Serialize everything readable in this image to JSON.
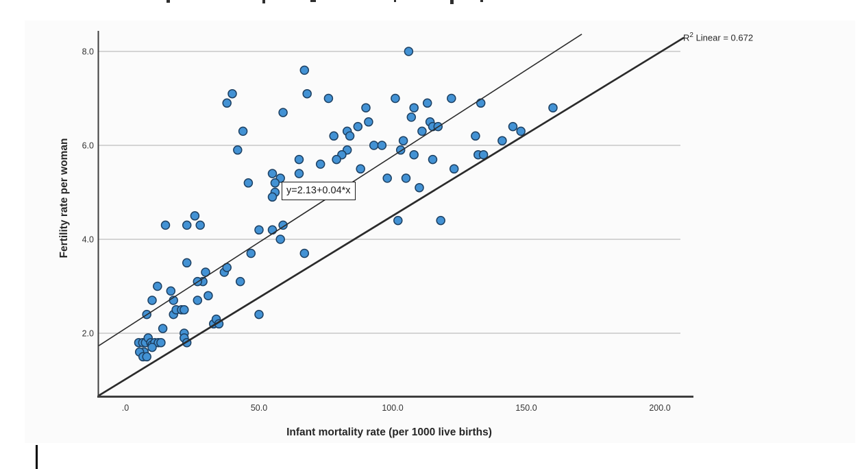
{
  "chart_data": {
    "type": "scatter",
    "title": "",
    "xlabel": "Infant mortality rate (per 1000 live births)",
    "ylabel": "Fertility rate per woman",
    "x_tick_labels": [
      ".0",
      "50.0",
      "100.0",
      "150.0",
      "200.0"
    ],
    "x_tick_values": [
      0,
      50,
      100,
      150,
      200
    ],
    "y_tick_labels": [
      "2.0",
      "4.0",
      "6.0",
      "8.0"
    ],
    "y_tick_values": [
      2,
      4,
      6,
      8
    ],
    "xlim": [
      -10.3,
      207.7
    ],
    "ylim": [
      0.65,
      8.44
    ],
    "grid": "horizontal-only",
    "legend": "none",
    "equation_label": "y=2.13+0.04*x",
    "r2_text": {
      "base": "R",
      "sup": "2",
      "rest": " Linear = 0.672"
    },
    "fit_lines": [
      {
        "name": "regression-fit-line",
        "slope": 0.0367,
        "intercept": 2.1,
        "x_range": [
          -10.26,
          170.8
        ],
        "stroke_width": 1.6
      },
      {
        "name": "reference-fit-line",
        "slope": 0.0348,
        "intercept": 1.02,
        "x_range": [
          -10.26,
          209.0
        ],
        "stroke_width": 2.7
      }
    ],
    "point_style": {
      "fill": "#4392d4",
      "stroke": "#1d4062",
      "radius": 6
    },
    "colors": {
      "gridline": "#bdbdbd",
      "axis": "#3e3e3e",
      "line": "#2b2b2b",
      "text": "#262626"
    },
    "points": [
      [
        67,
        7.6
      ],
      [
        68,
        7.1
      ],
      [
        76,
        7.0
      ],
      [
        40,
        7.1
      ],
      [
        38,
        6.9
      ],
      [
        59,
        6.7
      ],
      [
        90,
        6.8
      ],
      [
        91,
        6.5
      ],
      [
        87,
        6.4
      ],
      [
        83,
        6.3
      ],
      [
        84,
        6.2
      ],
      [
        78,
        6.2
      ],
      [
        44,
        6.3
      ],
      [
        42,
        5.9
      ],
      [
        93,
        6.0
      ],
      [
        96,
        6.0
      ],
      [
        83,
        5.9
      ],
      [
        81,
        5.8
      ],
      [
        79,
        5.7
      ],
      [
        65,
        5.7
      ],
      [
        73,
        5.6
      ],
      [
        65,
        5.4
      ],
      [
        55,
        5.4
      ],
      [
        58,
        5.3
      ],
      [
        56,
        5.2
      ],
      [
        46,
        5.2
      ],
      [
        56,
        5.0
      ],
      [
        55,
        4.9
      ],
      [
        88,
        5.5
      ],
      [
        98,
        5.3
      ],
      [
        106,
        8.0
      ],
      [
        101,
        7.0
      ],
      [
        108,
        6.8
      ],
      [
        113,
        6.9
      ],
      [
        107,
        6.6
      ],
      [
        122,
        7.0
      ],
      [
        133,
        6.9
      ],
      [
        114,
        6.5
      ],
      [
        115,
        6.4
      ],
      [
        117,
        6.4
      ],
      [
        111,
        6.3
      ],
      [
        160,
        6.8
      ],
      [
        145,
        6.4
      ],
      [
        148,
        6.3
      ],
      [
        104,
        6.1
      ],
      [
        103,
        5.9
      ],
      [
        108,
        5.8
      ],
      [
        115,
        5.7
      ],
      [
        131,
        6.2
      ],
      [
        141,
        6.1
      ],
      [
        132,
        5.8
      ],
      [
        134,
        5.8
      ],
      [
        123,
        5.5
      ],
      [
        105,
        5.3
      ],
      [
        110,
        5.1
      ],
      [
        26,
        4.5
      ],
      [
        15,
        4.3
      ],
      [
        23,
        4.3
      ],
      [
        28,
        4.3
      ],
      [
        50,
        4.2
      ],
      [
        55,
        4.2
      ],
      [
        59,
        4.3
      ],
      [
        58,
        4.0
      ],
      [
        47,
        3.7
      ],
      [
        67,
        3.7
      ],
      [
        23,
        3.5
      ],
      [
        37,
        3.3
      ],
      [
        38,
        3.4
      ],
      [
        43,
        3.1
      ],
      [
        30,
        3.3
      ],
      [
        29,
        3.1
      ],
      [
        27,
        3.1
      ],
      [
        12,
        3.0
      ],
      [
        17,
        2.9
      ],
      [
        10,
        2.7
      ],
      [
        18,
        2.7
      ],
      [
        31,
        2.8
      ],
      [
        27,
        2.7
      ],
      [
        18,
        2.4
      ],
      [
        19,
        2.5
      ],
      [
        21,
        2.5
      ],
      [
        22,
        2.5
      ],
      [
        8,
        2.4
      ],
      [
        50,
        2.4
      ],
      [
        33,
        2.2
      ],
      [
        34,
        2.3
      ],
      [
        35,
        2.2
      ],
      [
        14,
        2.1
      ],
      [
        22,
        2.0
      ],
      [
        22,
        1.9
      ],
      [
        23,
        1.8
      ],
      [
        102,
        4.4
      ],
      [
        118,
        4.4
      ],
      [
        5,
        1.8
      ],
      [
        6.5,
        1.8
      ],
      [
        7.5,
        1.8
      ],
      [
        8.5,
        1.9
      ],
      [
        9.5,
        1.8
      ],
      [
        10,
        1.75
      ],
      [
        11,
        1.8
      ],
      [
        12.3,
        1.8
      ],
      [
        13.3,
        1.8
      ],
      [
        7,
        1.6
      ],
      [
        5.3,
        1.6
      ],
      [
        6.6,
        1.5
      ],
      [
        8,
        1.5
      ],
      [
        10,
        1.7
      ]
    ]
  }
}
